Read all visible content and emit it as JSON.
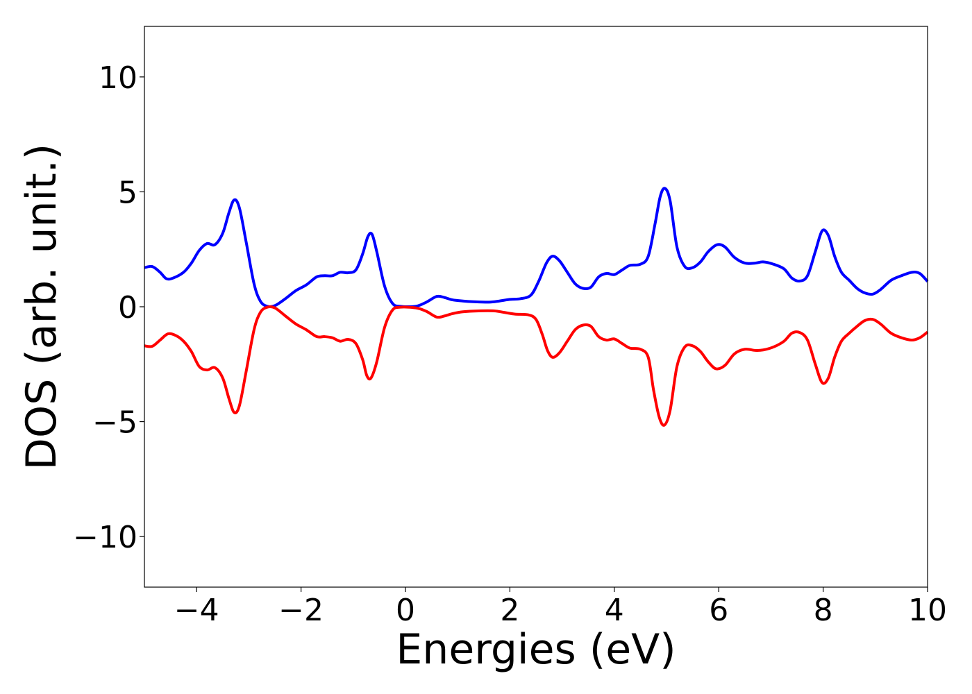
{
  "chart_data": {
    "type": "line",
    "title": "",
    "xlabel": "Energies (eV)",
    "ylabel": "DOS (arb. unit.)",
    "xlim": [
      -5,
      10
    ],
    "ylim": [
      -12.2,
      12.2
    ],
    "xticks": [
      -4,
      -2,
      0,
      2,
      4,
      6,
      8,
      10
    ],
    "xtick_labels": [
      "−4",
      "−2",
      "0",
      "2",
      "4",
      "6",
      "8",
      "10"
    ],
    "yticks": [
      10,
      5,
      0,
      -5,
      -10
    ],
    "ytick_labels": [
      "10",
      "5",
      "0",
      "−5",
      "−10"
    ],
    "grid": false,
    "legend": "none",
    "series": [
      {
        "color": "#0000ff",
        "points": [
          [
            -5.0,
            1.7
          ],
          [
            -4.85,
            1.75
          ],
          [
            -4.7,
            1.5
          ],
          [
            -4.58,
            1.22
          ],
          [
            -4.45,
            1.25
          ],
          [
            -4.25,
            1.5
          ],
          [
            -4.1,
            1.9
          ],
          [
            -3.95,
            2.45
          ],
          [
            -3.8,
            2.75
          ],
          [
            -3.65,
            2.7
          ],
          [
            -3.5,
            3.2
          ],
          [
            -3.38,
            4.1
          ],
          [
            -3.28,
            4.65
          ],
          [
            -3.18,
            4.3
          ],
          [
            -3.05,
            2.8
          ],
          [
            -2.9,
            1.0
          ],
          [
            -2.78,
            0.25
          ],
          [
            -2.65,
            0.02
          ],
          [
            -2.5,
            0.05
          ],
          [
            -2.3,
            0.35
          ],
          [
            -2.1,
            0.7
          ],
          [
            -1.9,
            0.95
          ],
          [
            -1.7,
            1.3
          ],
          [
            -1.55,
            1.35
          ],
          [
            -1.4,
            1.35
          ],
          [
            -1.25,
            1.5
          ],
          [
            -1.1,
            1.48
          ],
          [
            -0.95,
            1.6
          ],
          [
            -0.82,
            2.3
          ],
          [
            -0.72,
            3.05
          ],
          [
            -0.64,
            3.15
          ],
          [
            -0.55,
            2.4
          ],
          [
            -0.4,
            0.9
          ],
          [
            -0.25,
            0.15
          ],
          [
            -0.1,
            0.02
          ],
          [
            0.2,
            0.02
          ],
          [
            0.4,
            0.2
          ],
          [
            0.6,
            0.45
          ],
          [
            0.75,
            0.4
          ],
          [
            0.9,
            0.3
          ],
          [
            1.1,
            0.25
          ],
          [
            1.3,
            0.22
          ],
          [
            1.6,
            0.2
          ],
          [
            1.8,
            0.25
          ],
          [
            2.0,
            0.32
          ],
          [
            2.2,
            0.35
          ],
          [
            2.4,
            0.5
          ],
          [
            2.55,
            1.1
          ],
          [
            2.7,
            1.9
          ],
          [
            2.82,
            2.2
          ],
          [
            2.95,
            2.0
          ],
          [
            3.1,
            1.5
          ],
          [
            3.25,
            1.0
          ],
          [
            3.4,
            0.8
          ],
          [
            3.55,
            0.85
          ],
          [
            3.7,
            1.3
          ],
          [
            3.85,
            1.45
          ],
          [
            4.0,
            1.4
          ],
          [
            4.15,
            1.6
          ],
          [
            4.3,
            1.8
          ],
          [
            4.5,
            1.85
          ],
          [
            4.65,
            2.2
          ],
          [
            4.78,
            3.6
          ],
          [
            4.88,
            4.8
          ],
          [
            4.97,
            5.15
          ],
          [
            5.07,
            4.6
          ],
          [
            5.2,
            2.6
          ],
          [
            5.35,
            1.75
          ],
          [
            5.5,
            1.7
          ],
          [
            5.65,
            1.95
          ],
          [
            5.8,
            2.4
          ],
          [
            5.97,
            2.7
          ],
          [
            6.12,
            2.6
          ],
          [
            6.3,
            2.15
          ],
          [
            6.5,
            1.9
          ],
          [
            6.7,
            1.9
          ],
          [
            6.85,
            1.95
          ],
          [
            7.05,
            1.85
          ],
          [
            7.25,
            1.65
          ],
          [
            7.4,
            1.25
          ],
          [
            7.55,
            1.12
          ],
          [
            7.7,
            1.35
          ],
          [
            7.85,
            2.4
          ],
          [
            7.98,
            3.3
          ],
          [
            8.1,
            3.1
          ],
          [
            8.22,
            2.2
          ],
          [
            8.35,
            1.5
          ],
          [
            8.5,
            1.15
          ],
          [
            8.65,
            0.8
          ],
          [
            8.8,
            0.6
          ],
          [
            8.95,
            0.55
          ],
          [
            9.1,
            0.75
          ],
          [
            9.3,
            1.15
          ],
          [
            9.5,
            1.35
          ],
          [
            9.7,
            1.5
          ],
          [
            9.85,
            1.45
          ],
          [
            10.0,
            1.1
          ]
        ]
      },
      {
        "color": "#ff0000",
        "points": [
          [
            -5.0,
            -1.7
          ],
          [
            -4.85,
            -1.72
          ],
          [
            -4.7,
            -1.45
          ],
          [
            -4.55,
            -1.18
          ],
          [
            -4.4,
            -1.25
          ],
          [
            -4.25,
            -1.5
          ],
          [
            -4.1,
            -1.95
          ],
          [
            -3.95,
            -2.6
          ],
          [
            -3.8,
            -2.75
          ],
          [
            -3.65,
            -2.65
          ],
          [
            -3.5,
            -3.1
          ],
          [
            -3.38,
            -4.0
          ],
          [
            -3.28,
            -4.6
          ],
          [
            -3.18,
            -4.3
          ],
          [
            -3.05,
            -2.8
          ],
          [
            -2.9,
            -1.0
          ],
          [
            -2.78,
            -0.25
          ],
          [
            -2.65,
            -0.02
          ],
          [
            -2.5,
            -0.05
          ],
          [
            -2.3,
            -0.4
          ],
          [
            -2.1,
            -0.75
          ],
          [
            -1.9,
            -1.0
          ],
          [
            -1.7,
            -1.3
          ],
          [
            -1.55,
            -1.3
          ],
          [
            -1.4,
            -1.35
          ],
          [
            -1.25,
            -1.5
          ],
          [
            -1.1,
            -1.42
          ],
          [
            -0.95,
            -1.6
          ],
          [
            -0.82,
            -2.3
          ],
          [
            -0.74,
            -3.0
          ],
          [
            -0.66,
            -3.1
          ],
          [
            -0.55,
            -2.4
          ],
          [
            -0.4,
            -0.9
          ],
          [
            -0.25,
            -0.15
          ],
          [
            -0.1,
            -0.02
          ],
          [
            0.2,
            -0.05
          ],
          [
            0.4,
            -0.2
          ],
          [
            0.6,
            -0.45
          ],
          [
            0.75,
            -0.4
          ],
          [
            0.9,
            -0.3
          ],
          [
            1.1,
            -0.22
          ],
          [
            1.4,
            -0.18
          ],
          [
            1.7,
            -0.18
          ],
          [
            1.9,
            -0.25
          ],
          [
            2.1,
            -0.32
          ],
          [
            2.35,
            -0.35
          ],
          [
            2.5,
            -0.55
          ],
          [
            2.62,
            -1.2
          ],
          [
            2.72,
            -1.9
          ],
          [
            2.82,
            -2.2
          ],
          [
            2.95,
            -2.0
          ],
          [
            3.1,
            -1.5
          ],
          [
            3.25,
            -1.0
          ],
          [
            3.4,
            -0.8
          ],
          [
            3.55,
            -0.85
          ],
          [
            3.7,
            -1.3
          ],
          [
            3.85,
            -1.45
          ],
          [
            4.0,
            -1.4
          ],
          [
            4.15,
            -1.6
          ],
          [
            4.3,
            -1.8
          ],
          [
            4.5,
            -1.85
          ],
          [
            4.65,
            -2.2
          ],
          [
            4.75,
            -3.6
          ],
          [
            4.86,
            -4.8
          ],
          [
            4.96,
            -5.15
          ],
          [
            5.07,
            -4.5
          ],
          [
            5.2,
            -2.6
          ],
          [
            5.35,
            -1.75
          ],
          [
            5.5,
            -1.7
          ],
          [
            5.65,
            -1.95
          ],
          [
            5.8,
            -2.4
          ],
          [
            5.95,
            -2.7
          ],
          [
            6.12,
            -2.55
          ],
          [
            6.3,
            -2.05
          ],
          [
            6.5,
            -1.85
          ],
          [
            6.7,
            -1.9
          ],
          [
            6.85,
            -1.88
          ],
          [
            7.05,
            -1.75
          ],
          [
            7.25,
            -1.5
          ],
          [
            7.4,
            -1.15
          ],
          [
            7.55,
            -1.12
          ],
          [
            7.7,
            -1.45
          ],
          [
            7.85,
            -2.5
          ],
          [
            7.98,
            -3.3
          ],
          [
            8.1,
            -3.1
          ],
          [
            8.22,
            -2.2
          ],
          [
            8.35,
            -1.5
          ],
          [
            8.5,
            -1.15
          ],
          [
            8.65,
            -0.85
          ],
          [
            8.8,
            -0.6
          ],
          [
            8.95,
            -0.55
          ],
          [
            9.1,
            -0.75
          ],
          [
            9.3,
            -1.15
          ],
          [
            9.5,
            -1.35
          ],
          [
            9.7,
            -1.45
          ],
          [
            9.85,
            -1.35
          ],
          [
            10.0,
            -1.1
          ]
        ]
      }
    ]
  }
}
